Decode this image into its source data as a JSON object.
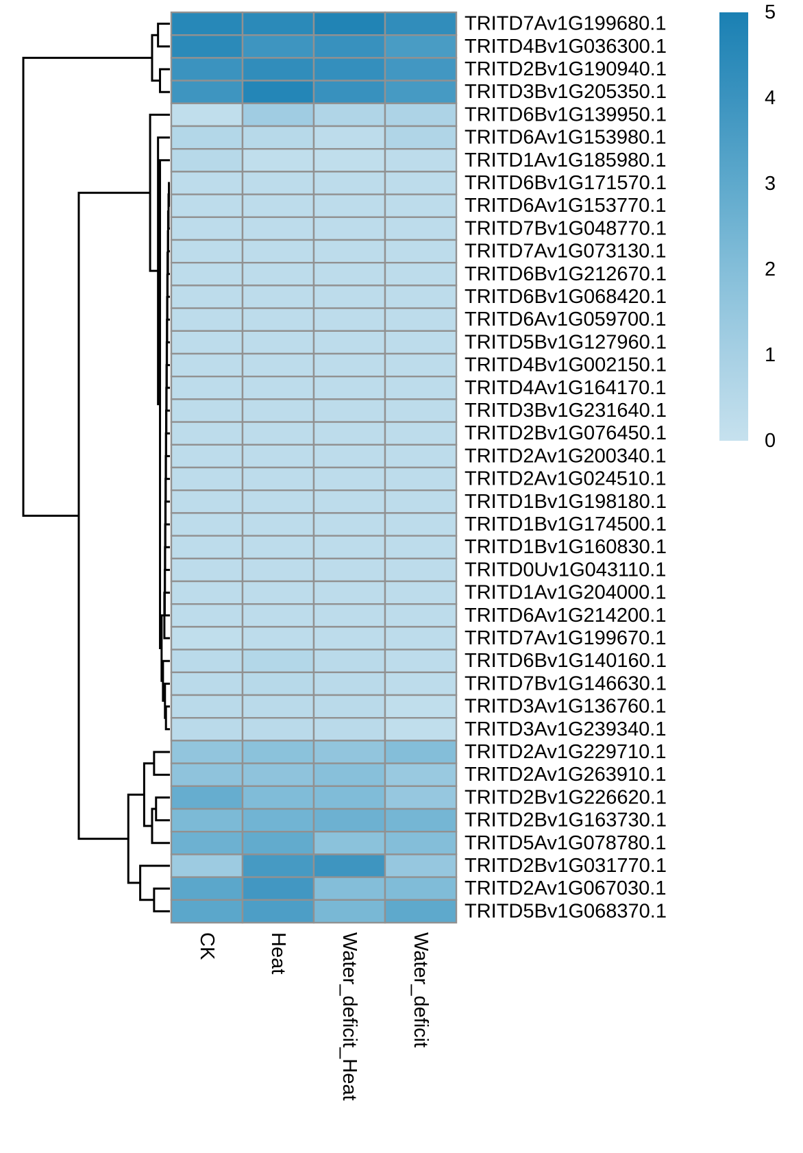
{
  "chart_data": {
    "type": "heatmap",
    "columns": [
      "CK",
      "Heat",
      "Water_deficit_Heat",
      "Water_deficit"
    ],
    "rows": [
      "TRITD7Av1G199680.1",
      "TRITD4Bv1G036300.1",
      "TRITD2Bv1G190940.1",
      "TRITD3Bv1G205350.1",
      "TRITD6Bv1G139950.1",
      "TRITD6Av1G153980.1",
      "TRITD1Av1G185980.1",
      "TRITD6Bv1G171570.1",
      "TRITD6Av1G153770.1",
      "TRITD7Bv1G048770.1",
      "TRITD7Av1G073130.1",
      "TRITD6Bv1G212670.1",
      "TRITD6Bv1G068420.1",
      "TRITD6Av1G059700.1",
      "TRITD5Bv1G127960.1",
      "TRITD4Bv1G002150.1",
      "TRITD4Av1G164170.1",
      "TRITD3Bv1G231640.1",
      "TRITD2Bv1G076450.1",
      "TRITD2Av1G200340.1",
      "TRITD2Av1G024510.1",
      "TRITD1Bv1G198180.1",
      "TRITD1Bv1G174500.1",
      "TRITD1Bv1G160830.1",
      "TRITD0Uv1G043110.1",
      "TRITD1Av1G204000.1",
      "TRITD6Av1G214200.1",
      "TRITD7Av1G199670.1",
      "TRITD6Bv1G140160.1",
      "TRITD7Bv1G146630.1",
      "TRITD3Av1G136760.1",
      "TRITD3Av1G239340.1",
      "TRITD2Av1G229710.1",
      "TRITD2Av1G263910.1",
      "TRITD2Bv1G226620.1",
      "TRITD2Bv1G163730.1",
      "TRITD5Av1G078780.1",
      "TRITD2Bv1G031770.1",
      "TRITD2Av1G067030.1",
      "TRITD5Bv1G068370.1"
    ],
    "values": [
      [
        4.6,
        4.5,
        4.8,
        4.3
      ],
      [
        4.5,
        3.9,
        4.1,
        3.6
      ],
      [
        4.0,
        4.3,
        4.2,
        3.8
      ],
      [
        3.9,
        4.7,
        4.1,
        3.7
      ],
      [
        0.2,
        1.2,
        0.7,
        0.8
      ],
      [
        0.6,
        0.5,
        0.3,
        0.7
      ],
      [
        0.5,
        0.2,
        0.2,
        0.3
      ],
      [
        0.3,
        0.3,
        0.3,
        0.3
      ],
      [
        0.3,
        0.3,
        0.3,
        0.3
      ],
      [
        0.3,
        0.3,
        0.3,
        0.3
      ],
      [
        0.3,
        0.3,
        0.3,
        0.3
      ],
      [
        0.3,
        0.3,
        0.3,
        0.3
      ],
      [
        0.3,
        0.3,
        0.3,
        0.3
      ],
      [
        0.3,
        0.3,
        0.3,
        0.3
      ],
      [
        0.3,
        0.3,
        0.3,
        0.3
      ],
      [
        0.3,
        0.3,
        0.3,
        0.3
      ],
      [
        0.3,
        0.3,
        0.3,
        0.3
      ],
      [
        0.3,
        0.3,
        0.3,
        0.3
      ],
      [
        0.3,
        0.3,
        0.3,
        0.3
      ],
      [
        0.3,
        0.3,
        0.3,
        0.3
      ],
      [
        0.3,
        0.3,
        0.3,
        0.3
      ],
      [
        0.3,
        0.3,
        0.3,
        0.3
      ],
      [
        0.3,
        0.3,
        0.3,
        0.3
      ],
      [
        0.3,
        0.3,
        0.3,
        0.3
      ],
      [
        0.3,
        0.3,
        0.3,
        0.3
      ],
      [
        0.3,
        0.3,
        0.3,
        0.3
      ],
      [
        0.3,
        0.3,
        0.3,
        0.3
      ],
      [
        0.2,
        0.3,
        0.3,
        0.3
      ],
      [
        0.4,
        0.6,
        0.4,
        0.3
      ],
      [
        0.4,
        0.5,
        0.4,
        0.3
      ],
      [
        0.4,
        0.4,
        0.4,
        0.2
      ],
      [
        0.4,
        0.4,
        0.4,
        0.2
      ],
      [
        1.6,
        1.8,
        1.6,
        2.0
      ],
      [
        1.7,
        1.7,
        1.9,
        1.4
      ],
      [
        2.8,
        2.1,
        2.1,
        1.5
      ],
      [
        2.2,
        2.5,
        2.6,
        2.4
      ],
      [
        2.6,
        2.9,
        1.8,
        2.0
      ],
      [
        1.3,
        3.7,
        3.9,
        1.5
      ],
      [
        3.1,
        3.8,
        2.0,
        2.1
      ],
      [
        3.1,
        3.5,
        2.3,
        3.0
      ]
    ],
    "color_scale": {
      "min": 0,
      "max": 5,
      "ticks": [
        "0",
        "1",
        "2",
        "3",
        "4",
        "5"
      ],
      "colors": [
        "#c6e1ee",
        "#a7d0e4",
        "#84bed9",
        "#5ea9cc",
        "#3b93bf",
        "#1a80b3"
      ]
    },
    "row_dendrogram": {
      "merges": [
        [
          0,
          1,
          0.6
        ],
        [
          2,
          3,
          0.5
        ],
        [
          40,
          41,
          0.9
        ],
        [
          7,
          8,
          0.05
        ],
        [
          43,
          9,
          0.07
        ],
        [
          44,
          10,
          0.09
        ],
        [
          45,
          11,
          0.1
        ],
        [
          46,
          12,
          0.12
        ],
        [
          47,
          13,
          0.13
        ],
        [
          48,
          14,
          0.14
        ],
        [
          49,
          15,
          0.15
        ],
        [
          50,
          16,
          0.16
        ],
        [
          51,
          17,
          0.17
        ],
        [
          52,
          18,
          0.18
        ],
        [
          53,
          19,
          0.19
        ],
        [
          54,
          20,
          0.2
        ],
        [
          55,
          21,
          0.21
        ],
        [
          56,
          22,
          0.22
        ],
        [
          57,
          23,
          0.23
        ],
        [
          58,
          24,
          0.24
        ],
        [
          59,
          25,
          0.25
        ],
        [
          60,
          26,
          0.26
        ],
        [
          61,
          27,
          0.28
        ],
        [
          30,
          31,
          0.2
        ],
        [
          29,
          63,
          0.25
        ],
        [
          28,
          64,
          0.35
        ],
        [
          62,
          65,
          0.42
        ],
        [
          6,
          66,
          0.5
        ],
        [
          5,
          67,
          0.6
        ],
        [
          4,
          68,
          1.0
        ],
        [
          32,
          33,
          0.8
        ],
        [
          34,
          35,
          0.7
        ],
        [
          36,
          71,
          0.9
        ],
        [
          70,
          72,
          1.3
        ],
        [
          38,
          39,
          0.8
        ],
        [
          37,
          74,
          1.5
        ],
        [
          73,
          75,
          2.1
        ],
        [
          69,
          76,
          4.6
        ],
        [
          42,
          77,
          7.4
        ]
      ]
    }
  }
}
